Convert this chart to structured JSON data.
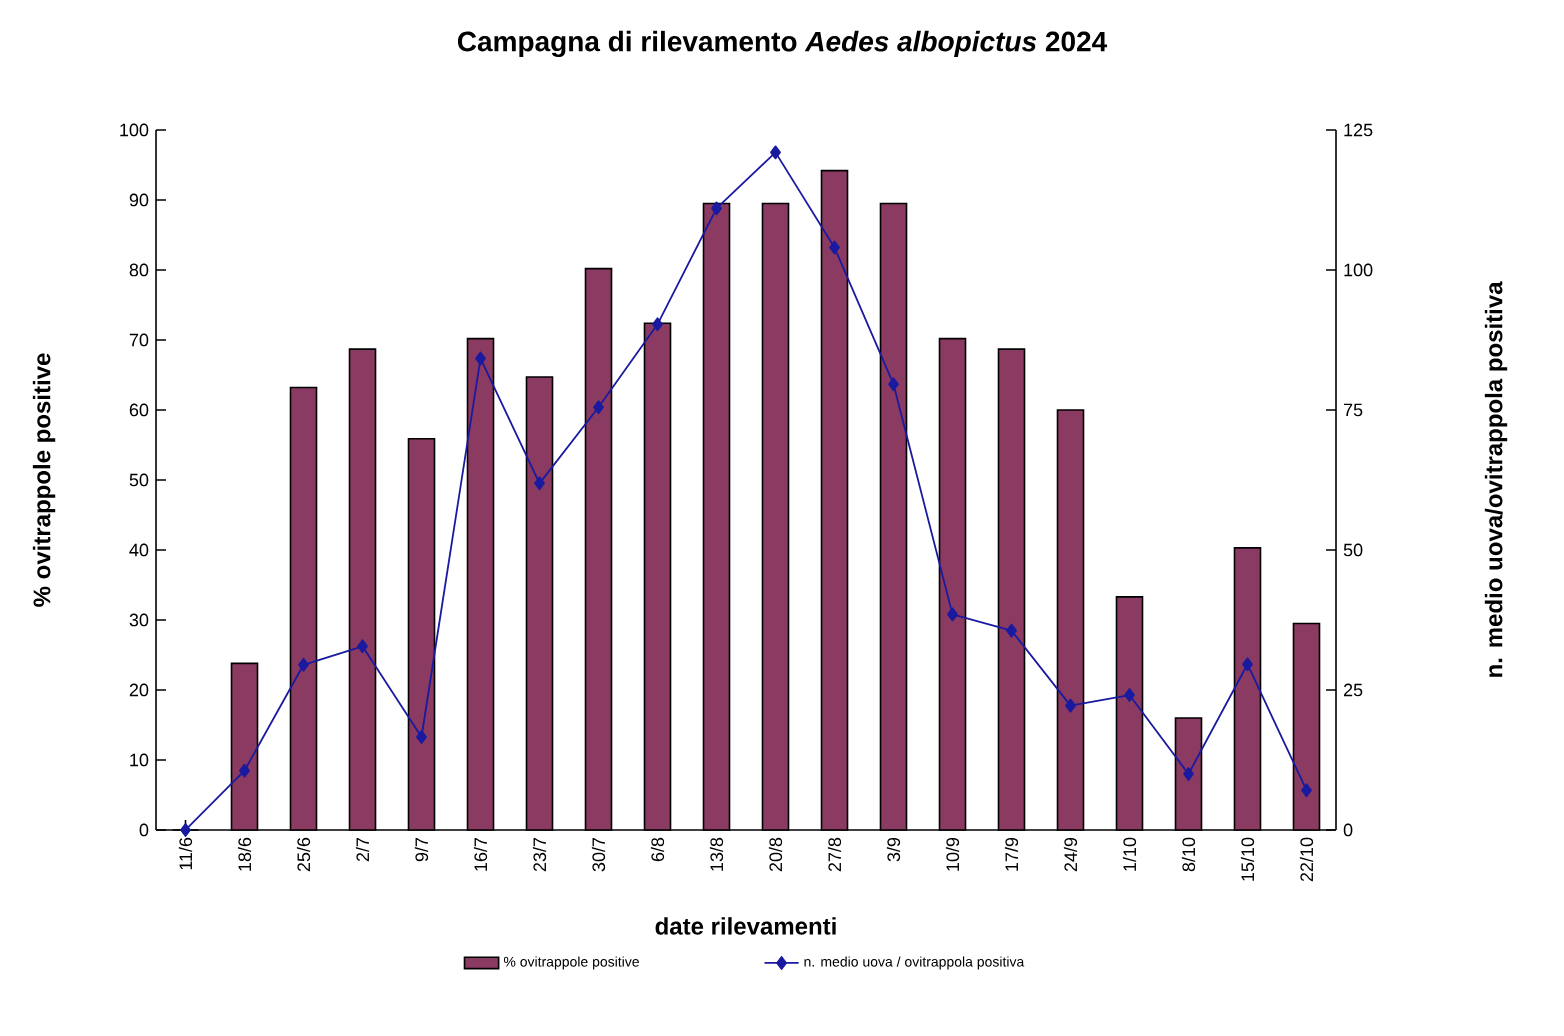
{
  "chart_data": {
    "type": "bar",
    "title": "Campagna di rilevamento *Aedes albopictus* 2024",
    "xlabel": "date rilevamenti",
    "ylabel": "% ovitrappole positive",
    "y2label": "n. medio uova/ovitrappola positiva",
    "categories": [
      "11/6",
      "18/6",
      "25/6",
      "2/7",
      "9/7",
      "16/7",
      "23/7",
      "30/7",
      "6/8",
      "13/8",
      "20/8",
      "27/8",
      "3/9",
      "10/9",
      "17/9",
      "24/9",
      "1/10",
      "8/10",
      "15/10",
      "22/10"
    ],
    "series": [
      {
        "name": "% ovitrappole positive",
        "color": "#8b3a62",
        "values": [
          0,
          23.8,
          63.2,
          68.7,
          55.9,
          70.2,
          64.7,
          80.2,
          72.4,
          89.5,
          89.5,
          94.2,
          89.5,
          70.2,
          68.7,
          60,
          33.3,
          16,
          40.3,
          29.5
        ]
      },
      {
        "name": "n. medio uova / ovitrappola positiva",
        "type": "line",
        "axis": "y2",
        "marker": "diamond",
        "color": "#1a1aa0",
        "values": [
          0,
          10.6,
          29.5,
          32.8,
          16.6,
          84.2,
          61.9,
          75.5,
          90.3,
          111,
          121,
          104,
          79.6,
          38.5,
          35.6,
          22.2,
          24.1,
          10,
          29.6,
          7.1
        ]
      }
    ],
    "ylim": [
      0,
      100
    ],
    "yticks": [
      0,
      10,
      20,
      30,
      40,
      50,
      60,
      70,
      80,
      90,
      100
    ],
    "y2lim": [
      0,
      125
    ],
    "y2ticks": [
      0,
      25,
      50,
      75,
      100,
      125
    ],
    "legend": "bottom"
  }
}
